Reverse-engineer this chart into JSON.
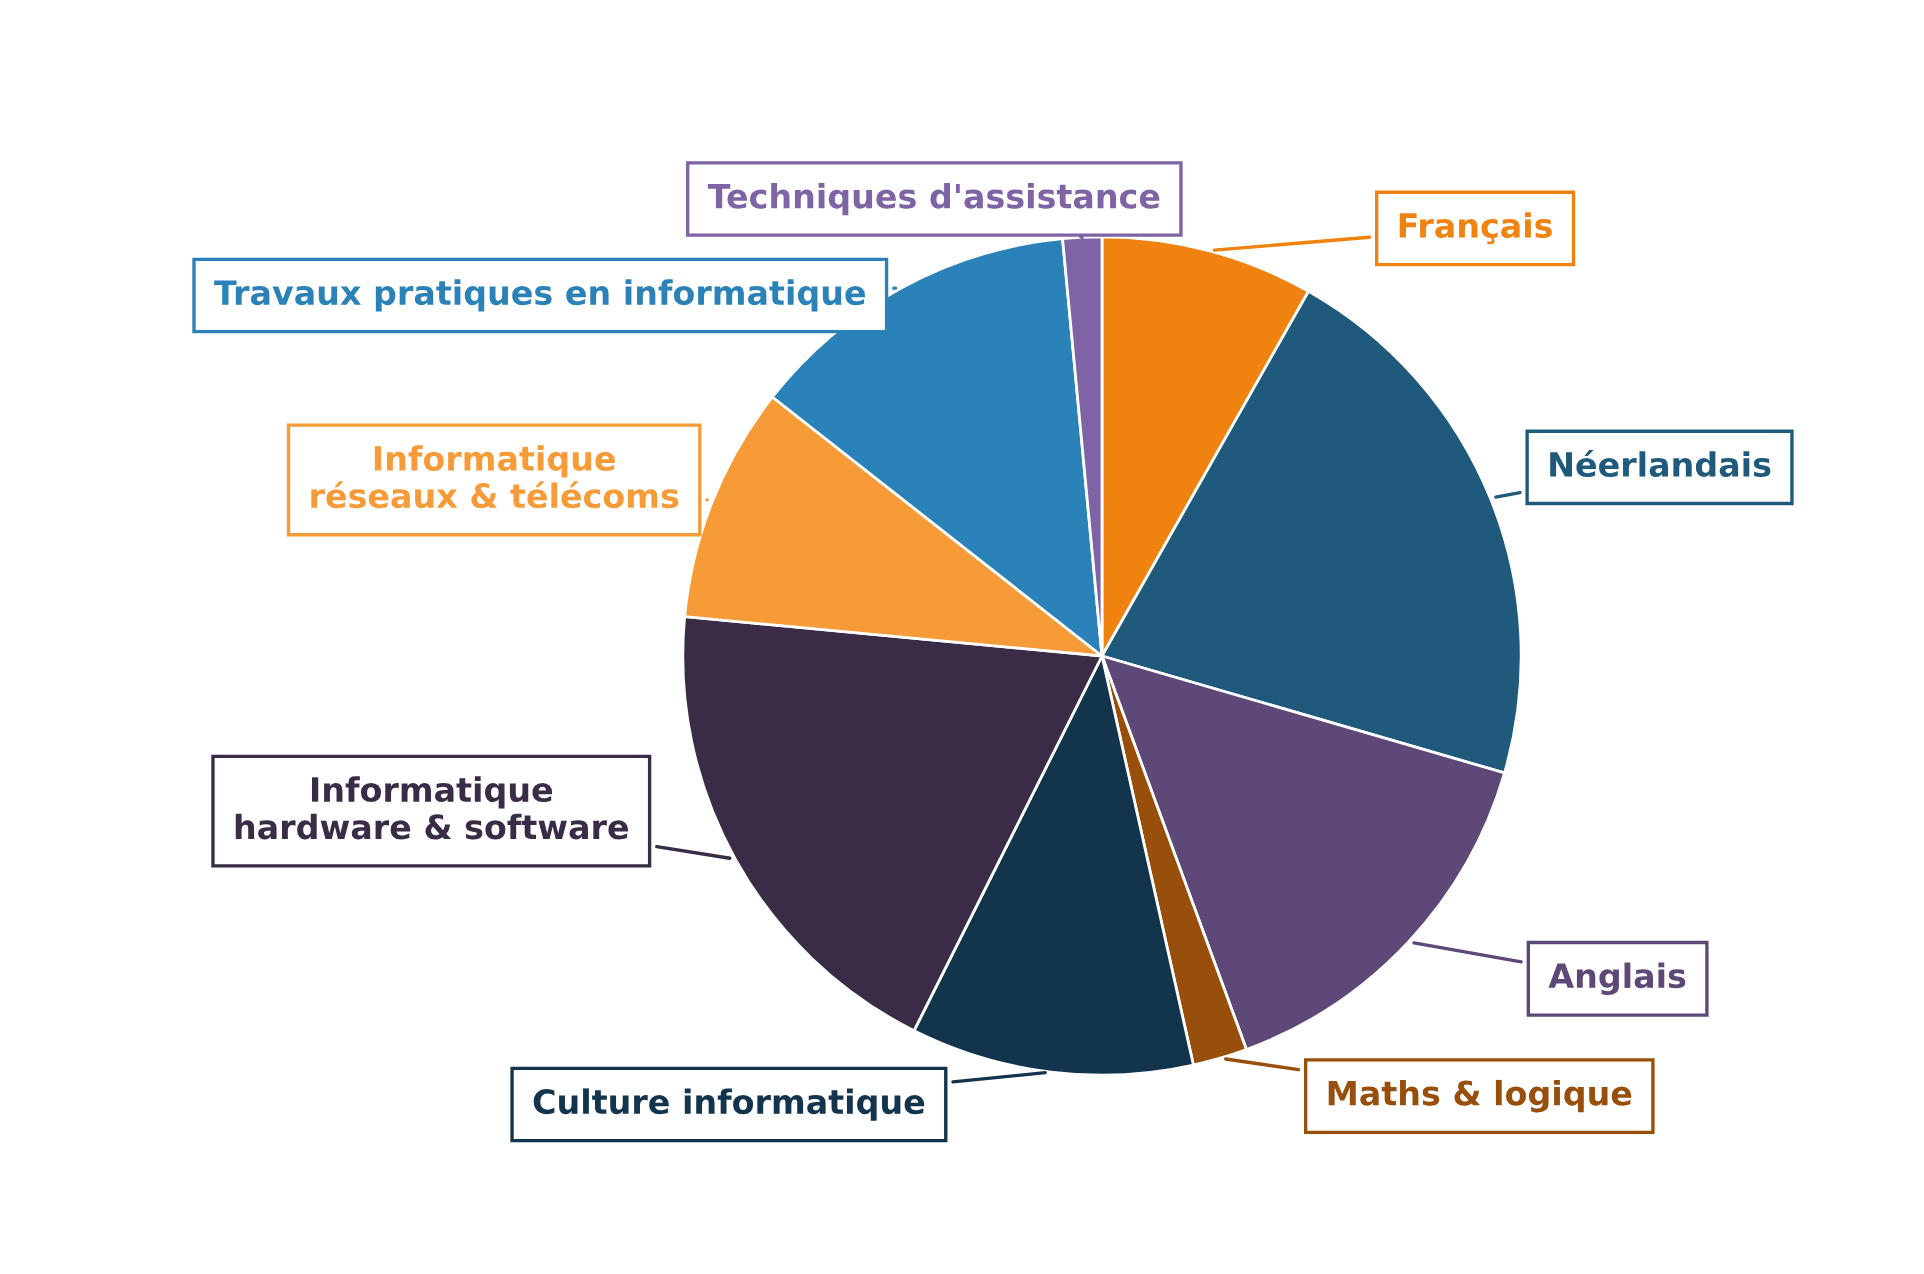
{
  "chart_data": {
    "type": "pie",
    "categories": [
      "Français",
      "Néerlandais",
      "Anglais",
      "Maths & logique",
      "Culture informatique",
      "Informatique\nhardware & software",
      "Informatique\nréseaux & télécoms",
      "Travaux pratiques en informatique",
      "Techniques d'assistance"
    ],
    "values": [
      8.2,
      21.3,
      14.9,
      2.1,
      10.9,
      19.1,
      9.1,
      12.9,
      1.5
    ],
    "colors": [
      "#f0820f",
      "#1f5a7d",
      "#5e4878",
      "#974f0b",
      "#12354d",
      "#3a2b47",
      "#f79b38",
      "#2b82b8",
      "#7e63a5"
    ],
    "legend": false
  }
}
